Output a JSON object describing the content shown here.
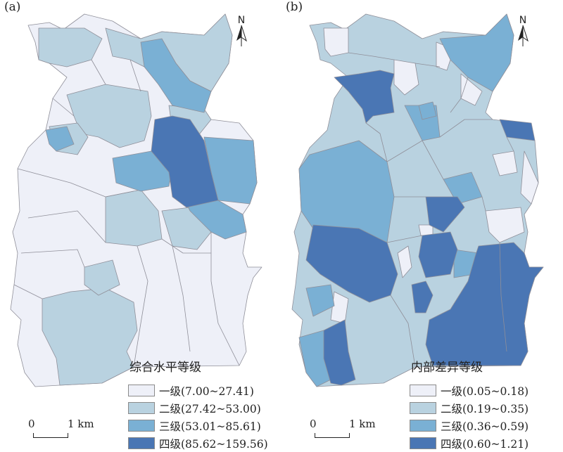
{
  "panels": [
    {
      "label": "(a)",
      "legend_title": "综合水平等级",
      "legend": [
        {
          "label": "一级(7.00~27.41)",
          "color": "#eef0f8"
        },
        {
          "label": "二级(27.42~53.00)",
          "color": "#b9d2e0"
        },
        {
          "label": "三级(53.01~85.61)",
          "color": "#7ab0d4"
        },
        {
          "label": "四级(85.62~159.56)",
          "color": "#4a76b4"
        }
      ]
    },
    {
      "label": "(b)",
      "legend_title": "内部差异等级",
      "legend": [
        {
          "label": "一级(0.05~0.18)",
          "color": "#eef0f8"
        },
        {
          "label": "二级(0.19~0.35)",
          "color": "#b9d2e0"
        },
        {
          "label": "三级(0.36~0.59)",
          "color": "#7ab0d4"
        },
        {
          "label": "四级(0.60~1.21)",
          "color": "#4a76b4"
        }
      ]
    }
  ],
  "north_arrow": "N",
  "scale_bar": {
    "start": "0",
    "end": "1 km"
  }
}
